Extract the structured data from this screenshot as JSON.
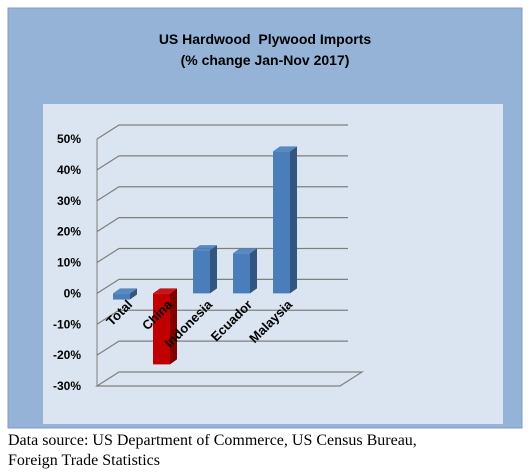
{
  "chart_data": {
    "type": "bar",
    "title": "US Hardwood  Plywood Imports",
    "subtitle": "(% change Jan-Nov 2017)",
    "categories": [
      "Total",
      "China",
      "Indonesia",
      "Ecuador",
      "Malaysia"
    ],
    "values": [
      -2,
      -23,
      14,
      13,
      46
    ],
    "ylim": [
      -30,
      50
    ],
    "yticks": [
      "50%",
      "40%",
      "30%",
      "20%",
      "10%",
      "0%",
      "-10%",
      "-20%",
      "-30%"
    ],
    "ytick_values": [
      50,
      40,
      30,
      20,
      10,
      0,
      -10,
      -20,
      -30
    ],
    "xlabel": "",
    "ylabel": "",
    "grid": true,
    "legend": "none",
    "colors": {
      "bar": "#4a7ebb",
      "highlight": "#c00000",
      "outer_background": "#94b3d6",
      "plot_background": "#dbe5f1"
    },
    "highlight_category": "China"
  },
  "source": {
    "line1": "Data source: US Department of Commerce, US Census Bureau,",
    "line2": "Foreign Trade Statistics"
  }
}
